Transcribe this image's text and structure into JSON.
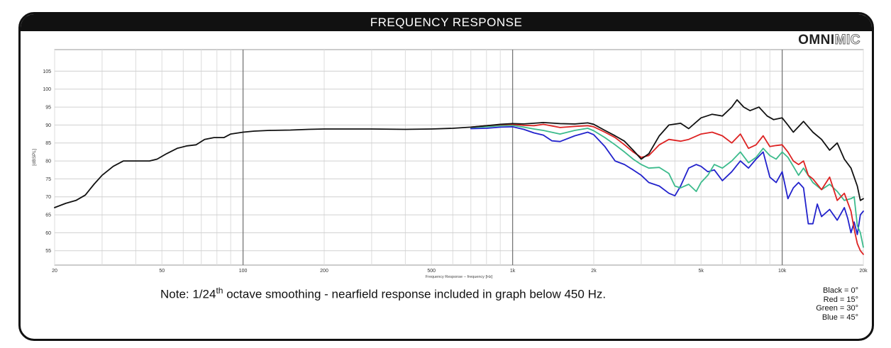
{
  "header": {
    "title": "FREQUENCY RESPONSE"
  },
  "brand": {
    "part1": "OMNI",
    "part2": "MIC"
  },
  "note": {
    "prefix": "Note: 1/24",
    "sup": "th",
    "suffix": " octave smoothing - nearfield response included in graph below 450 Hz."
  },
  "legend": [
    "Black = 0°",
    "Red = 15°",
    "Green = 30°",
    "Blue = 45°"
  ],
  "chart_data": {
    "type": "line",
    "title": "",
    "xlabel": "Frequency Response -- frequency [Hz]",
    "ylabel": "[dBSPL]",
    "xscale": "log",
    "xlim": [
      20,
      20000
    ],
    "ylim": [
      51,
      111
    ],
    "grid": true,
    "x_ticks": [
      20,
      50,
      100,
      200,
      500,
      1000,
      2000,
      5000,
      10000,
      20000
    ],
    "x_tick_labels": [
      "20",
      "50",
      "100",
      "200",
      "500",
      "1k",
      "2k",
      "5k",
      "10k",
      "20k"
    ],
    "y_ticks": [
      55,
      60,
      65,
      70,
      75,
      80,
      85,
      90,
      95,
      100,
      105
    ],
    "y_tick_labels": [
      "55",
      "60",
      "65",
      "70",
      "75",
      "80",
      "85",
      "90",
      "95",
      "100",
      "105"
    ],
    "series": [
      {
        "name": "Black = 0°",
        "color": "#111111",
        "points": [
          [
            20,
            67
          ],
          [
            22,
            68.2
          ],
          [
            24,
            69
          ],
          [
            26,
            70.5
          ],
          [
            28,
            73.5
          ],
          [
            30,
            76
          ],
          [
            33,
            78.5
          ],
          [
            36,
            80
          ],
          [
            40,
            80
          ],
          [
            45,
            80
          ],
          [
            48,
            80.5
          ],
          [
            52,
            82
          ],
          [
            57,
            83.5
          ],
          [
            62,
            84.2
          ],
          [
            67,
            84.5
          ],
          [
            72,
            86
          ],
          [
            78,
            86.5
          ],
          [
            85,
            86.5
          ],
          [
            90,
            87.5
          ],
          [
            100,
            88
          ],
          [
            110,
            88.3
          ],
          [
            125,
            88.5
          ],
          [
            150,
            88.6
          ],
          [
            175,
            88.8
          ],
          [
            200,
            88.9
          ],
          [
            250,
            88.9
          ],
          [
            300,
            88.9
          ],
          [
            400,
            88.8
          ],
          [
            500,
            88.9
          ],
          [
            600,
            89.1
          ],
          [
            700,
            89.4
          ],
          [
            800,
            89.8
          ],
          [
            900,
            90.2
          ],
          [
            1000,
            90.4
          ],
          [
            1100,
            90.3
          ],
          [
            1200,
            90.5
          ],
          [
            1300,
            90.7
          ],
          [
            1500,
            90.4
          ],
          [
            1700,
            90.3
          ],
          [
            1900,
            90.6
          ],
          [
            2000,
            90.2
          ],
          [
            2200,
            88.5
          ],
          [
            2400,
            87
          ],
          [
            2600,
            85.5
          ],
          [
            2800,
            83
          ],
          [
            3000,
            80.5
          ],
          [
            3200,
            82
          ],
          [
            3500,
            87
          ],
          [
            3800,
            90
          ],
          [
            4200,
            90.5
          ],
          [
            4500,
            89
          ],
          [
            5000,
            92
          ],
          [
            5500,
            93
          ],
          [
            6000,
            92.5
          ],
          [
            6500,
            95
          ],
          [
            6800,
            97
          ],
          [
            7200,
            95
          ],
          [
            7600,
            94
          ],
          [
            8200,
            95
          ],
          [
            8800,
            92.5
          ],
          [
            9300,
            91.5
          ],
          [
            10000,
            92
          ],
          [
            10500,
            90
          ],
          [
            11000,
            88
          ],
          [
            12000,
            91
          ],
          [
            13000,
            88
          ],
          [
            14000,
            86
          ],
          [
            15000,
            83
          ],
          [
            16000,
            85
          ],
          [
            17000,
            80.5
          ],
          [
            18000,
            78
          ],
          [
            19000,
            73
          ],
          [
            19500,
            69
          ],
          [
            20000,
            69.5
          ]
        ]
      },
      {
        "name": "Red = 15°",
        "color": "#dd2222",
        "points": [
          [
            700,
            89.4
          ],
          [
            800,
            89.8
          ],
          [
            900,
            90.1
          ],
          [
            1000,
            90.2
          ],
          [
            1100,
            89.9
          ],
          [
            1200,
            89.8
          ],
          [
            1300,
            90.2
          ],
          [
            1500,
            89.3
          ],
          [
            1700,
            89.6
          ],
          [
            1900,
            89.8
          ],
          [
            2000,
            89.5
          ],
          [
            2200,
            88
          ],
          [
            2400,
            86.5
          ],
          [
            2600,
            84.5
          ],
          [
            2800,
            82.5
          ],
          [
            3000,
            81
          ],
          [
            3200,
            81.5
          ],
          [
            3500,
            84.5
          ],
          [
            3800,
            86
          ],
          [
            4200,
            85.5
          ],
          [
            4500,
            86
          ],
          [
            5000,
            87.5
          ],
          [
            5500,
            88
          ],
          [
            6000,
            87
          ],
          [
            6500,
            85
          ],
          [
            7000,
            87.5
          ],
          [
            7500,
            83.5
          ],
          [
            8000,
            84.5
          ],
          [
            8500,
            87
          ],
          [
            9000,
            84
          ],
          [
            9500,
            84.3
          ],
          [
            10000,
            84.5
          ],
          [
            10500,
            82.5
          ],
          [
            11000,
            80
          ],
          [
            11500,
            79
          ],
          [
            12000,
            80
          ],
          [
            12500,
            76
          ],
          [
            13000,
            75
          ],
          [
            14000,
            72
          ],
          [
            15000,
            75.5
          ],
          [
            16000,
            69
          ],
          [
            17000,
            71
          ],
          [
            18000,
            66
          ],
          [
            18500,
            61
          ],
          [
            19000,
            57
          ],
          [
            19500,
            55
          ],
          [
            20000,
            54
          ]
        ]
      },
      {
        "name": "Green = 30°",
        "color": "#3cbb8c",
        "points": [
          [
            700,
            89.3
          ],
          [
            800,
            89.5
          ],
          [
            900,
            89.8
          ],
          [
            1000,
            89.9
          ],
          [
            1100,
            89.4
          ],
          [
            1200,
            88.9
          ],
          [
            1300,
            88.5
          ],
          [
            1500,
            87.5
          ],
          [
            1700,
            88.5
          ],
          [
            1900,
            89.1
          ],
          [
            2000,
            88.4
          ],
          [
            2200,
            86.5
          ],
          [
            2400,
            84.5
          ],
          [
            2600,
            82.5
          ],
          [
            2800,
            80.5
          ],
          [
            3000,
            79
          ],
          [
            3200,
            78
          ],
          [
            3500,
            78.2
          ],
          [
            3800,
            76.5
          ],
          [
            4000,
            73
          ],
          [
            4200,
            72.5
          ],
          [
            4500,
            73.5
          ],
          [
            4800,
            71.5
          ],
          [
            5000,
            74
          ],
          [
            5300,
            76
          ],
          [
            5600,
            79
          ],
          [
            6000,
            78
          ],
          [
            6500,
            80
          ],
          [
            7000,
            82.5
          ],
          [
            7500,
            79.5
          ],
          [
            8000,
            81
          ],
          [
            8500,
            83.5
          ],
          [
            9000,
            81.5
          ],
          [
            9500,
            80.5
          ],
          [
            10000,
            82.5
          ],
          [
            10500,
            81
          ],
          [
            11000,
            78.5
          ],
          [
            11500,
            76
          ],
          [
            12000,
            78
          ],
          [
            13000,
            74
          ],
          [
            14000,
            72
          ],
          [
            15000,
            73.5
          ],
          [
            16000,
            71.5
          ],
          [
            17000,
            69
          ],
          [
            18000,
            69.5
          ],
          [
            18500,
            70
          ],
          [
            19000,
            62
          ],
          [
            19500,
            60
          ],
          [
            20000,
            56
          ]
        ]
      },
      {
        "name": "Blue = 45°",
        "color": "#2222cc",
        "points": [
          [
            700,
            89
          ],
          [
            800,
            89.1
          ],
          [
            900,
            89.4
          ],
          [
            1000,
            89.5
          ],
          [
            1100,
            88.8
          ],
          [
            1200,
            87.8
          ],
          [
            1300,
            87.2
          ],
          [
            1400,
            85.6
          ],
          [
            1500,
            85.4
          ],
          [
            1700,
            87
          ],
          [
            1900,
            88
          ],
          [
            2000,
            87.3
          ],
          [
            2200,
            84
          ],
          [
            2400,
            80
          ],
          [
            2600,
            79
          ],
          [
            2800,
            77.5
          ],
          [
            3000,
            76
          ],
          [
            3200,
            74
          ],
          [
            3500,
            73
          ],
          [
            3800,
            71
          ],
          [
            4000,
            70.3
          ],
          [
            4200,
            73
          ],
          [
            4500,
            78
          ],
          [
            4800,
            79
          ],
          [
            5000,
            78.5
          ],
          [
            5300,
            77
          ],
          [
            5600,
            77.5
          ],
          [
            6000,
            74.5
          ],
          [
            6500,
            77
          ],
          [
            7000,
            80
          ],
          [
            7500,
            78
          ],
          [
            8000,
            80.5
          ],
          [
            8500,
            82.5
          ],
          [
            9000,
            75.5
          ],
          [
            9500,
            74
          ],
          [
            10000,
            77
          ],
          [
            10500,
            69.5
          ],
          [
            11000,
            72.5
          ],
          [
            11500,
            74
          ],
          [
            12000,
            72.5
          ],
          [
            12500,
            62.5
          ],
          [
            13000,
            62.5
          ],
          [
            13500,
            68
          ],
          [
            14000,
            64.5
          ],
          [
            15000,
            66.5
          ],
          [
            16000,
            63.5
          ],
          [
            17000,
            67
          ],
          [
            17500,
            64
          ],
          [
            18000,
            60
          ],
          [
            18500,
            63
          ],
          [
            19000,
            59.5
          ],
          [
            19500,
            65
          ],
          [
            20000,
            66
          ]
        ]
      }
    ]
  }
}
